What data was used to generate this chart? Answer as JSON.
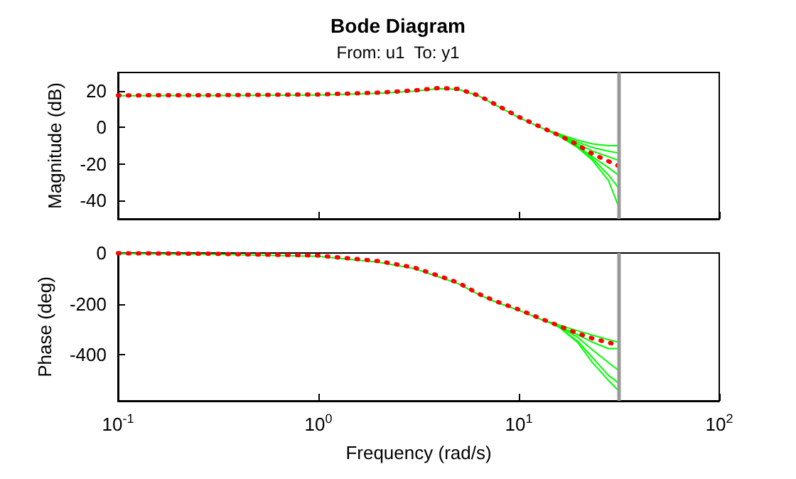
{
  "chart_data": [
    {
      "type": "line",
      "title": "Bode Diagram",
      "subtitle": "From: u1  To: y1",
      "ylabel": "Magnitude (dB)",
      "log": "x",
      "grid": false,
      "marker": "none",
      "tick_labels": "y",
      "x": [
        0.1,
        0.3,
        1,
        2,
        3,
        4,
        5,
        6.3,
        7.6,
        10,
        13.6,
        15.8,
        19.6,
        23.3,
        28,
        31.4
      ],
      "xlim": [
        0.1,
        100
      ],
      "xticks": [
        {
          "value": 0.1,
          "label": null
        },
        {
          "value": 1,
          "label": null
        },
        {
          "value": 10,
          "label": null
        },
        {
          "value": 100,
          "label": null
        }
      ],
      "ylim": [
        -50,
        30
      ],
      "yticks": [
        -40,
        -20,
        0,
        20
      ],
      "ref_lines": [
        {
          "axis": "x",
          "value": 31.4,
          "color": "#999999"
        }
      ],
      "series": [
        {
          "color": "#00ff00",
          "line_style": "solid",
          "values": [
            17.3,
            17.4,
            17.7,
            18.6,
            19.8,
            21.2,
            20.8,
            17.2,
            12.4,
            5.4,
            -1.3,
            -3.5,
            -7,
            -9,
            -10,
            -10
          ]
        },
        {
          "color": "#00ff00",
          "line_style": "solid",
          "x": [
            13.6,
            15.8,
            19.6,
            23.3,
            28,
            31.4
          ],
          "values": [
            -1,
            -4,
            -8,
            -11,
            -13,
            -14
          ]
        },
        {
          "color": "#00ff00",
          "line_style": "solid",
          "x": [
            13.6,
            15.8,
            19.6,
            23.3,
            28,
            31.4
          ],
          "values": [
            -1,
            -4.2,
            -9,
            -13,
            -16,
            -18
          ]
        },
        {
          "color": "#00ff00",
          "line_style": "solid",
          "x": [
            13.6,
            15.8,
            19.6,
            23.3,
            28,
            31.4
          ],
          "values": [
            -1,
            -4.5,
            -10,
            -16,
            -22,
            -26
          ]
        },
        {
          "color": "#00ff00",
          "line_style": "solid",
          "x": [
            13.6,
            15.8,
            19.6,
            23.3,
            28,
            31.4
          ],
          "values": [
            -1,
            -4.5,
            -10.5,
            -17,
            -26,
            -33
          ]
        },
        {
          "color": "#00ff00",
          "line_style": "solid",
          "x": [
            13.6,
            15.8,
            19.6,
            23.3,
            28,
            31.4
          ],
          "values": [
            -1,
            -4.5,
            -11,
            -18,
            -29,
            -43
          ]
        },
        {
          "color": "#ff0000",
          "line_style": "dotted",
          "values": [
            17.5,
            17.6,
            18,
            19,
            20.2,
            21.5,
            21,
            17.4,
            12.7,
            5.7,
            -1,
            -4.2,
            -9.4,
            -14.5,
            -18.5,
            -21
          ]
        }
      ]
    },
    {
      "type": "line",
      "xlabel": "Frequency (rad/s)",
      "ylabel": "Phase (deg)",
      "log": "x",
      "grid": false,
      "marker": "none",
      "x": [
        0.1,
        0.3,
        1,
        2,
        3,
        4,
        5,
        6.3,
        7.6,
        10,
        13.6,
        15.8,
        19.6,
        23.3,
        28,
        31.4
      ],
      "xlim": [
        0.1,
        100
      ],
      "xticks": [
        {
          "value": 0.1,
          "label": "10$^{-1}$"
        },
        {
          "value": 1,
          "label": "10$^{0}$"
        },
        {
          "value": 10,
          "label": "10$^{1}$"
        },
        {
          "value": 100,
          "label": "10$^{2}$"
        }
      ],
      "ylim": [
        -580,
        0
      ],
      "yticks": [
        -400,
        -200,
        0
      ],
      "ref_lines": [
        {
          "axis": "x",
          "value": 31.4,
          "color": "#999999"
        }
      ],
      "series": [
        {
          "color": "#00ff00",
          "line_style": "solid",
          "values": [
            -2,
            -5,
            -13,
            -36,
            -61,
            -94,
            -121,
            -163,
            -191,
            -225,
            -268,
            -282,
            -305,
            -322,
            -340,
            -350
          ]
        },
        {
          "color": "#00ff00",
          "line_style": "solid",
          "x": [
            13.6,
            15.8,
            19.6,
            23.3,
            28,
            31.4
          ],
          "values": [
            -265,
            -287,
            -320,
            -350,
            -375,
            -375
          ]
        },
        {
          "color": "#00ff00",
          "line_style": "solid",
          "x": [
            13.6,
            15.8,
            19.6,
            23.3,
            28,
            31.4
          ],
          "values": [
            -265,
            -288,
            -330,
            -380,
            -430,
            -460
          ]
        },
        {
          "color": "#00ff00",
          "line_style": "solid",
          "x": [
            13.6,
            15.8,
            19.6,
            23.3,
            28,
            31.4
          ],
          "values": [
            -265,
            -290,
            -345,
            -410,
            -480,
            -510
          ]
        },
        {
          "color": "#00ff00",
          "line_style": "solid",
          "x": [
            13.6,
            15.8,
            19.6,
            23.3,
            28,
            31.4
          ],
          "values": [
            -265,
            -290,
            -350,
            -430,
            -500,
            -540
          ]
        },
        {
          "color": "#ff0000",
          "line_style": "dotted",
          "values": [
            -1,
            -3,
            -10,
            -32,
            -57,
            -90,
            -117,
            -160,
            -188,
            -222,
            -265,
            -285,
            -315,
            -335,
            -352,
            -360
          ]
        }
      ]
    }
  ]
}
